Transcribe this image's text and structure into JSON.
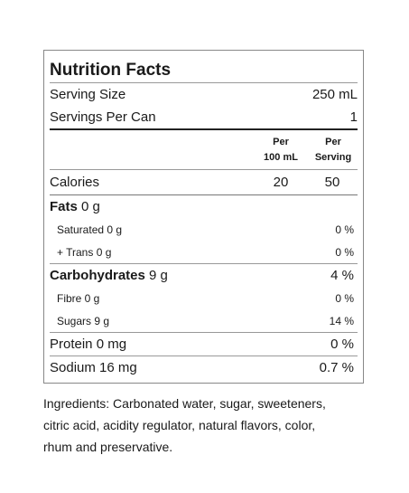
{
  "label": {
    "title": "Nutrition Facts",
    "serving_size_label": "Serving Size",
    "serving_size_value": "250 mL",
    "servings_label": "Servings Per Can",
    "servings_value": "1",
    "col_per100_line1": "Per",
    "col_per100_line2": "100 mL",
    "col_serving_line1": "Per",
    "col_serving_line2": "Serving",
    "calories_label": "Calories",
    "calories_per100": "20",
    "calories_per_serving": "50",
    "fats_label": "Fats",
    "fats_amount": "0 g",
    "saturated_label": "Saturated 0 g",
    "saturated_pct": "0 %",
    "trans_label": "+ Trans 0 g",
    "trans_pct": "0 %",
    "carbs_label": "Carbohydrates",
    "carbs_amount": "9 g",
    "carbs_pct": "4 %",
    "fibre_label": "Fibre 0 g",
    "fibre_pct": "0 %",
    "sugars_label": "Sugars 9 g",
    "sugars_pct": "14 %",
    "protein_label": "Protein 0 mg",
    "protein_pct": "0 %",
    "sodium_label": "Sodium 16 mg",
    "sodium_pct": "0.7 %"
  },
  "ingredients": {
    "line1": "Ingredients: Carbonated water, sugar, sweeteners,",
    "line2": "citric acid, acidity regulator, natural flavors, color,",
    "line3": "rhum and preservative."
  }
}
